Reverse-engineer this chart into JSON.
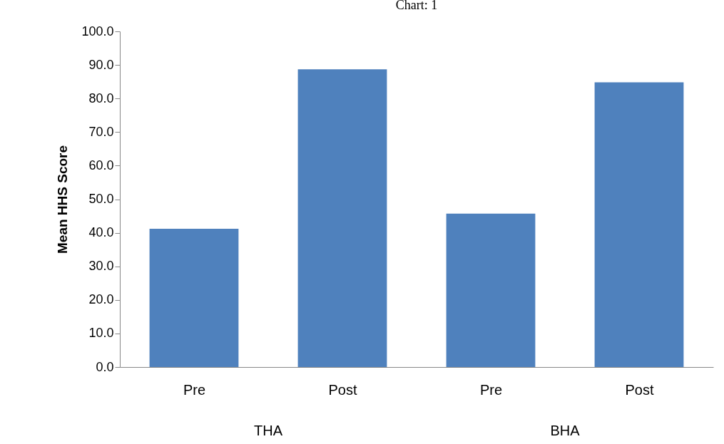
{
  "chart_data": {
    "type": "bar",
    "title": "Chart: 1",
    "ylabel": "Mean HHS Score",
    "categories": [
      "Pre",
      "Post",
      "Pre",
      "Post"
    ],
    "values": [
      41.2,
      88.7,
      45.7,
      84.8
    ],
    "color": "#4f81bd",
    "annotations": [
      "THA",
      "BHA"
    ],
    "ylim": [
      0,
      100
    ],
    "yticks": [
      {
        "value": 0,
        "label": "0.0"
      },
      {
        "value": 10,
        "label": "10.0"
      },
      {
        "value": 20,
        "label": "20.0"
      },
      {
        "value": 30,
        "label": "30.0"
      },
      {
        "value": 40,
        "label": "40.0"
      },
      {
        "value": 50,
        "label": "50.0"
      },
      {
        "value": 60,
        "label": "60.0"
      },
      {
        "value": 70,
        "label": "70.0"
      },
      {
        "value": 80,
        "label": "80.0"
      },
      {
        "value": 90,
        "label": "90.0"
      },
      {
        "value": 100,
        "label": "100.0"
      }
    ],
    "grid": false
  }
}
